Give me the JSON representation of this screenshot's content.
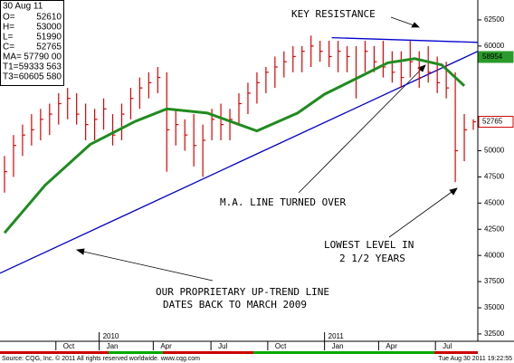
{
  "chart_data": {
    "type": "ohlc",
    "color": "#e00000",
    "high": [
      49500,
      51500,
      52500,
      53500,
      54000,
      54500,
      55500,
      56000,
      55500,
      54500,
      54000,
      55000,
      53500,
      54500,
      56000,
      57000,
      57500,
      58000,
      57500,
      54000,
      53000,
      53500,
      52500,
      54000,
      54500,
      54000,
      55500,
      56500,
      57500,
      58000,
      59000,
      59500,
      60000,
      60000,
      61000,
      60500,
      60500,
      60500,
      60000,
      60000,
      60500,
      60000,
      60500,
      59500,
      59500,
      60500,
      59500,
      60000,
      59000,
      58500,
      57500,
      53500,
      53000
    ],
    "low": [
      46000,
      47500,
      49500,
      50500,
      51000,
      51500,
      52500,
      53000,
      52500,
      51000,
      51000,
      52000,
      50500,
      51000,
      53000,
      54000,
      55000,
      55500,
      48000,
      50500,
      50000,
      48500,
      47500,
      51000,
      51000,
      51000,
      52500,
      53500,
      54500,
      55500,
      56000,
      57000,
      57500,
      57500,
      58000,
      58500,
      58000,
      57500,
      57500,
      55000,
      57500,
      57500,
      57000,
      56500,
      56000,
      57000,
      56000,
      56500,
      55500,
      55000,
      47000,
      49000,
      51990
    ],
    "close": [
      48000,
      50500,
      51500,
      52000,
      53000,
      53500,
      54500,
      55000,
      53500,
      52500,
      53000,
      54000,
      51500,
      53500,
      55000,
      56000,
      56500,
      57000,
      52000,
      52500,
      51500,
      50500,
      51000,
      53000,
      52500,
      53000,
      54500,
      55500,
      56500,
      57500,
      58000,
      58500,
      59000,
      59500,
      60000,
      59500,
      59000,
      59500,
      59000,
      57000,
      59500,
      58500,
      58000,
      57500,
      57000,
      58500,
      57000,
      57500,
      56500,
      56000,
      50000,
      52000,
      52765
    ],
    "ma": {
      "color": "#1e8c1e",
      "x": [
        0.5,
        5,
        10,
        15,
        18.5,
        23,
        28.5,
        33,
        36,
        40,
        43,
        46,
        49,
        51.5
      ],
      "values": [
        42150,
        46700,
        50600,
        52800,
        54000,
        53600,
        51900,
        53600,
        55400,
        57100,
        58400,
        58800,
        58200,
        56200
      ]
    },
    "lines": [
      {
        "color": "#0000cc",
        "x": [
          0,
          53
        ],
        "values": [
          38300,
          59500
        ]
      },
      {
        "color": "#0000cc",
        "x": [
          36.8,
          53
        ],
        "values": [
          60800,
          60350
        ]
      }
    ],
    "xlim": [
      0,
      53
    ],
    "ylim": [
      31800,
      64400
    ],
    "yticks": [
      62500,
      60000,
      50000,
      47500,
      45000,
      42500,
      40000,
      37500,
      35000,
      32500
    ],
    "xticks": [
      {
        "value": 6.2,
        "label": "Oct"
      },
      {
        "value": 11,
        "label": "Jan"
      },
      {
        "value": 17,
        "label": "Apr"
      },
      {
        "value": 23.4,
        "label": "Jul"
      },
      {
        "value": 29.7,
        "label": "Oct"
      },
      {
        "value": 36,
        "label": "Jan"
      },
      {
        "value": 42,
        "label": "Apr"
      },
      {
        "value": 48.3,
        "label": "Jul"
      }
    ],
    "years": [
      {
        "value": 11,
        "label": "2010"
      },
      {
        "value": 36,
        "label": "2011"
      }
    ],
    "price_tags": [
      {
        "value": 58954,
        "color": "#2a9a2a"
      },
      {
        "value": 52765,
        "color": "#d00000"
      }
    ],
    "annotations": [
      "KEY RESISTANCE",
      "M.A. LINE TURNED OVER",
      "LOWEST LEVEL IN",
      "2 1/2 YEARS",
      "OUR PROPRIETARY UP-TREND LINE",
      "DATES BACK TO MARCH 2009"
    ],
    "info": {
      "date": "30 Aug 11",
      "rows": [
        [
          "O=",
          "52610"
        ],
        [
          "H=",
          "53000"
        ],
        [
          "L=",
          "51990"
        ],
        [
          "C=",
          "52765"
        ],
        [
          "MA=",
          "57790 00"
        ],
        [
          "T1=",
          "59333 563"
        ],
        [
          "T3=",
          "60605 580"
        ]
      ]
    },
    "footer": {
      "source": "Source: CQG, Inc. © 2011 All rights reserved worldwide. www.cqg.com",
      "timestamp": "Tue Aug 30 2011 19:22:55"
    }
  }
}
